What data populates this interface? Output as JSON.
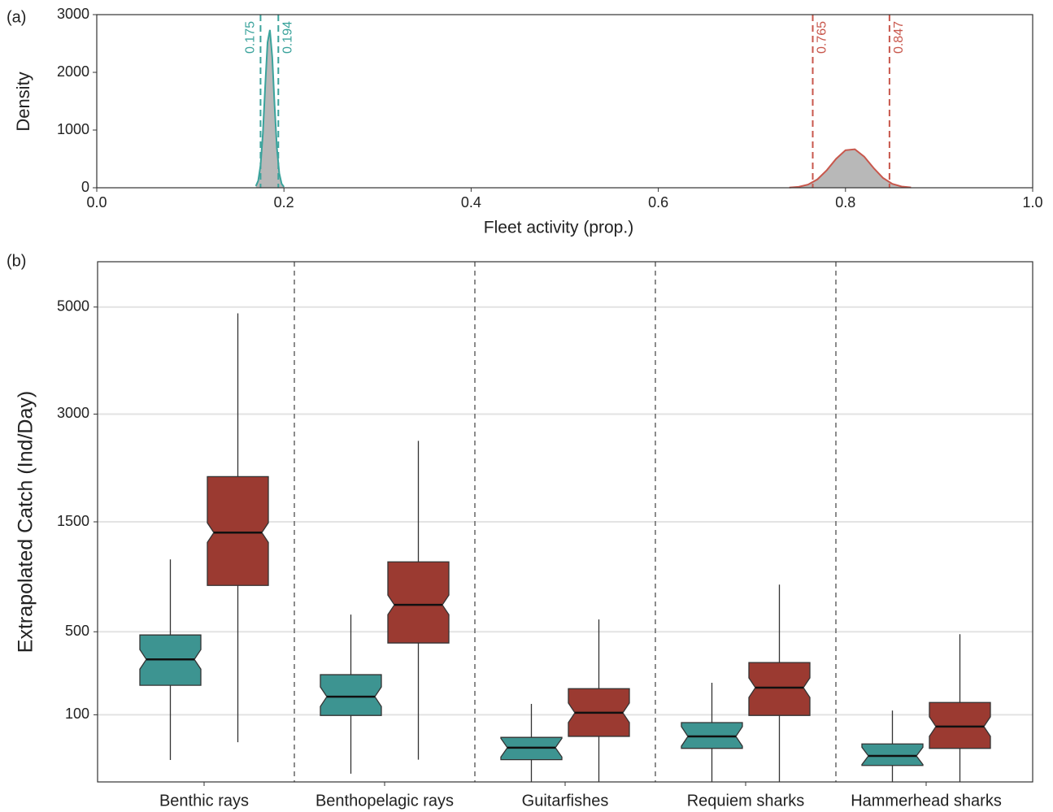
{
  "chart_data": [
    {
      "type": "density",
      "panel_label": "(a)",
      "x_label": "Fleet activity (prop.)",
      "y_label": "Density",
      "xlim": [
        0,
        1
      ],
      "xticks": [
        {
          "value": 0,
          "label": "0.0"
        },
        0.2,
        0.4,
        0.6,
        0.8,
        {
          "value": 1,
          "label": "1.0"
        }
      ],
      "ylim": [
        0,
        3000
      ],
      "yticks": [
        0,
        1000,
        2000,
        3000
      ],
      "series": [
        {
          "color": "#3ba39c",
          "x": [
            0.17,
            0.1725,
            0.175,
            0.1775,
            0.18,
            0.1825,
            0.185,
            0.1875,
            0.19,
            0.1925,
            0.195,
            0.1975,
            0.2
          ],
          "values": [
            29,
            121,
            387,
            947,
            1771,
            2521,
            2735,
            2263,
            1428,
            685,
            250,
            70,
            15
          ],
          "vlines": [
            0.175,
            0.194
          ]
        },
        {
          "color": "#c8574c",
          "x": [
            0.74,
            0.75,
            0.76,
            0.77,
            0.78,
            0.79,
            0.8,
            0.81,
            0.82,
            0.83,
            0.84,
            0.85,
            0.86,
            0.87
          ],
          "values": [
            4,
            16,
            55,
            146,
            304,
            502,
            651,
            667,
            539,
            343,
            171,
            67,
            21,
            5
          ],
          "vlines": [
            0.765,
            0.847
          ]
        }
      ]
    },
    {
      "type": "boxplot",
      "panel_label": "(b)",
      "y_label": "Extrapolated Catch (Ind/Day)",
      "y_scale": "sqrt",
      "grid": true,
      "categories": [
        "Benthic rays",
        "Benthopelagic rays",
        "Guitarfishes",
        "Requiem sharks",
        "Hammerhead sharks"
      ],
      "ylim": [
        0,
        6000
      ],
      "yticks": [
        100,
        500,
        1500,
        3000,
        5000
      ],
      "series": [
        {
          "color": "#3d9491",
          "low": [
            10.7,
            1.5,
            0,
            0,
            0
          ],
          "q1": [
            207,
            98,
            11,
            25,
            6
          ],
          "median": [
            333,
            161,
            26,
            46,
            15
          ],
          "q3": [
            479,
            255,
            44,
            78,
            32
          ],
          "high": [
            1098,
            621,
            135,
            218,
            113
          ]
        },
        {
          "color": "#9b3a31",
          "low": [
            35,
            11,
            0,
            0,
            0
          ],
          "q1": [
            856,
            428,
            46,
            98,
            25
          ],
          "median": [
            1378,
            695,
            106,
            197,
            68
          ],
          "q3": [
            2067,
            1074,
            193,
            316,
            140
          ],
          "high": [
            4868,
            2579,
            585,
            863,
            484
          ]
        }
      ]
    }
  ]
}
